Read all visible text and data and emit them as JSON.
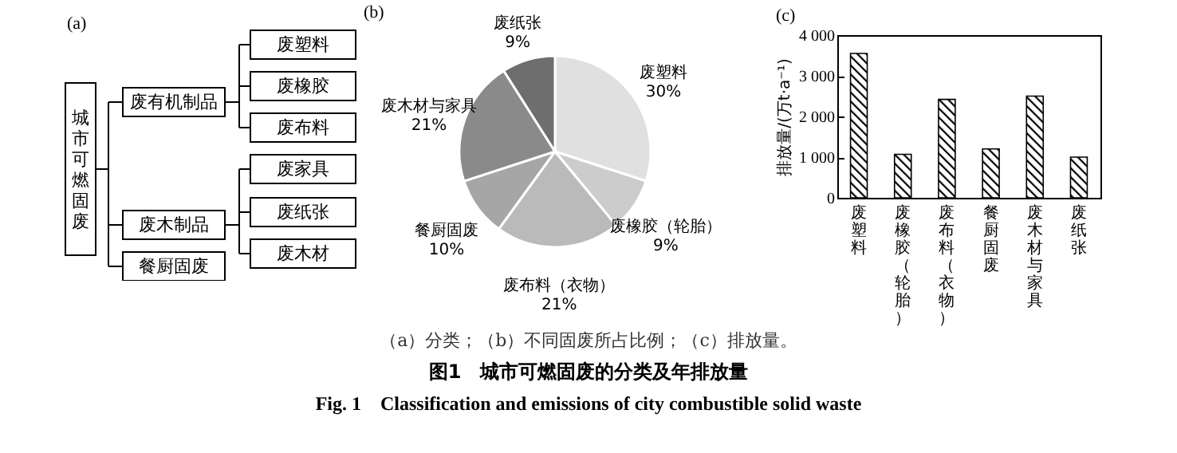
{
  "chart_data": [
    {
      "type": "other",
      "title": "(a)",
      "annotations": [
        "城市可燃固废",
        "废有机制品",
        "废木制品",
        "餐厨固废",
        "废塑料",
        "废橡胶",
        "废布料",
        "废家具",
        "废纸张",
        "废木材"
      ]
    },
    {
      "type": "pie",
      "title": "(b)",
      "categories": [
        "废塑料",
        "废橡胶（轮胎）",
        "废布料（衣物）",
        "餐厨固废",
        "废木材与家具",
        "废纸张"
      ],
      "values": [
        30,
        9,
        21,
        10,
        21,
        9
      ],
      "colors": [
        "#e0e0e0",
        "#cccccc",
        "#bababa",
        "#a6a6a6",
        "#8a8a8a",
        "#6e6e6e"
      ],
      "value_labels": [
        "30%",
        "9%",
        "21%",
        "10%",
        "21%",
        "9%"
      ]
    },
    {
      "type": "bar",
      "title": "(c)",
      "ylabel": "排放量/(万t·a⁻¹)",
      "categories": [
        "废塑料",
        "废橡胶（轮胎）",
        "废布料（衣物）",
        "餐厨固废",
        "废木材与家具",
        "废纸张"
      ],
      "values": [
        3550,
        1070,
        2420,
        1200,
        2500,
        1000
      ],
      "color": "#000000",
      "ylim": [
        0,
        4000
      ],
      "yticks": [
        0,
        {
          "value": 1000,
          "label": "1 000"
        },
        {
          "value": 2000,
          "label": "2 000"
        },
        {
          "value": 3000,
          "label": "3 000"
        },
        {
          "value": 4000,
          "label": "4 000"
        }
      ],
      "grid": false,
      "annotations": [
        "（a）分类；（b）不同固废所占比例；（c）排放量。",
        "图1　城市可燃固废的分类及年排放量",
        "Fig. 1　Classification and emissions of city combustible solid waste"
      ]
    }
  ]
}
